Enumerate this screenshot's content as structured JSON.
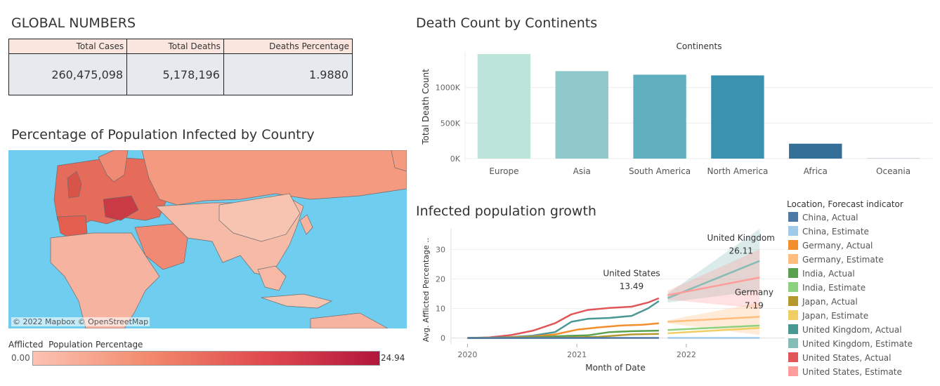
{
  "global": {
    "title": "GLOBAL NUMBERS",
    "headers": [
      "Total Cases",
      "Total Deaths",
      "Deaths Percentage"
    ],
    "values": [
      "260,475,098",
      "5,178,196",
      "1.9880"
    ]
  },
  "map_section": {
    "title": "Percentage of Population Infected by Country",
    "credit": "© 2022 Mapbox © OpenStreetMap",
    "legend_title": "Afflicted  Population Percentage",
    "legend_min": "0.00",
    "legend_max": "24.94"
  },
  "bar_section": {
    "title": "Death Count by Continents"
  },
  "growth_section": {
    "title": "Infected population growth"
  },
  "chart_data": [
    {
      "type": "bar",
      "title": "Continents",
      "ylabel": "Total Death Count",
      "categories": [
        "Europe",
        "Asia",
        "South America",
        "North America",
        "Africa",
        "Oceania"
      ],
      "values": [
        1470000,
        1230000,
        1180000,
        1170000,
        210000,
        2000
      ],
      "yticks": [
        "0K",
        "500K",
        "1000K"
      ],
      "ylim": [
        0,
        1500000
      ],
      "colors": [
        "#bde4da",
        "#8ec8cb",
        "#5fafbf",
        "#3a91b0",
        "#336f96",
        "#2d5d80"
      ]
    },
    {
      "type": "line",
      "xlabel": "Month of Date",
      "ylabel": "Avg. Afflicted Percentage ..",
      "xticks": [
        "2020",
        "2021",
        "2022"
      ],
      "yticks": [
        "0",
        "10",
        "20",
        "30"
      ],
      "ylim": [
        -2,
        37
      ],
      "legend_title": "Location, Forecast indicator",
      "legend": [
        {
          "label": "China, Actual",
          "color": "#4e79a7"
        },
        {
          "label": "China, Estimate",
          "color": "#a0cbe8"
        },
        {
          "label": "Germany, Actual",
          "color": "#f28e2b"
        },
        {
          "label": "Germany, Estimate",
          "color": "#ffbe7d"
        },
        {
          "label": "India, Actual",
          "color": "#59a14f"
        },
        {
          "label": "India, Estimate",
          "color": "#8cd17d"
        },
        {
          "label": "Japan, Actual",
          "color": "#b6992d"
        },
        {
          "label": "Japan, Estimate",
          "color": "#f1ce63"
        },
        {
          "label": "United Kingdom, Actual",
          "color": "#499894"
        },
        {
          "label": "United Kingdom, Estimate",
          "color": "#86bcb6"
        },
        {
          "label": "United States, Actual",
          "color": "#e15759"
        },
        {
          "label": "United States, Estimate",
          "color": "#ff9d9a"
        }
      ],
      "series": [
        {
          "name": "United States, Actual",
          "color": "#e15759",
          "x": [
            2020.0,
            2020.2,
            2020.4,
            2020.6,
            2020.8,
            2020.95,
            2021.1,
            2021.3,
            2021.5,
            2021.65,
            2021.75
          ],
          "y": [
            0,
            0.2,
            1,
            2.5,
            5,
            8,
            9.5,
            10.2,
            10.6,
            12,
            13.49
          ]
        },
        {
          "name": "United Kingdom, Actual",
          "color": "#499894",
          "x": [
            2020.0,
            2020.2,
            2020.4,
            2020.6,
            2020.8,
            2020.95,
            2021.1,
            2021.3,
            2021.5,
            2021.65,
            2021.75
          ],
          "y": [
            0,
            0.1,
            0.3,
            0.8,
            2,
            5.5,
            6.5,
            6.8,
            7.5,
            10,
            12.5
          ]
        },
        {
          "name": "Germany, Actual",
          "color": "#f28e2b",
          "x": [
            2020.0,
            2020.3,
            2020.6,
            2020.8,
            2021.0,
            2021.2,
            2021.4,
            2021.6,
            2021.75
          ],
          "y": [
            0,
            0.1,
            0.5,
            1.2,
            2.8,
            3.6,
            4.2,
            4.5,
            5
          ]
        },
        {
          "name": "India, Actual",
          "color": "#59a14f",
          "x": [
            2020.0,
            2020.4,
            2020.7,
            2020.9,
            2021.1,
            2021.3,
            2021.5,
            2021.75
          ],
          "y": [
            0,
            0.1,
            0.4,
            0.7,
            0.9,
            2,
            2.3,
            2.5
          ]
        },
        {
          "name": "Japan, Actual",
          "color": "#b6992d",
          "x": [
            2020.0,
            2020.8,
            2021.2,
            2021.5,
            2021.75
          ],
          "y": [
            0,
            0.1,
            0.4,
            1.2,
            1.4
          ]
        },
        {
          "name": "China, Actual",
          "color": "#4e79a7",
          "x": [
            2020.0,
            2021.75
          ],
          "y": [
            0,
            0.01
          ]
        },
        {
          "name": "United Kingdom, Estimate",
          "color": "#86bcb6",
          "x": [
            2021.83,
            2022.67
          ],
          "y": [
            13.5,
            26.11
          ],
          "band_low": [
            12,
            16
          ],
          "band_high": [
            15,
            37
          ]
        },
        {
          "name": "United States, Estimate",
          "color": "#ff9d9a",
          "x": [
            2021.83,
            2022.67
          ],
          "y": [
            14.5,
            20.5
          ],
          "band_low": [
            13,
            10
          ],
          "band_high": [
            16,
            30
          ]
        },
        {
          "name": "Germany, Estimate",
          "color": "#ffbe7d",
          "x": [
            2021.83,
            2022.67
          ],
          "y": [
            5.5,
            7.19
          ],
          "band_low": [
            5,
            1
          ],
          "band_high": [
            6,
            12
          ]
        },
        {
          "name": "India, Estimate",
          "color": "#8cd17d",
          "x": [
            2021.83,
            2022.67
          ],
          "y": [
            2.7,
            4.2
          ]
        },
        {
          "name": "Japan, Estimate",
          "color": "#f1ce63",
          "x": [
            2021.83,
            2022.67
          ],
          "y": [
            1.6,
            3.4
          ]
        },
        {
          "name": "China, Estimate",
          "color": "#a0cbe8",
          "x": [
            2021.83,
            2022.67
          ],
          "y": [
            0.02,
            0.02
          ]
        }
      ],
      "annotations": [
        {
          "label": "United States",
          "value": "13.49"
        },
        {
          "label": "United Kingdom",
          "value": "26.11"
        },
        {
          "label": "Germany",
          "value": "7.19"
        }
      ]
    }
  ]
}
